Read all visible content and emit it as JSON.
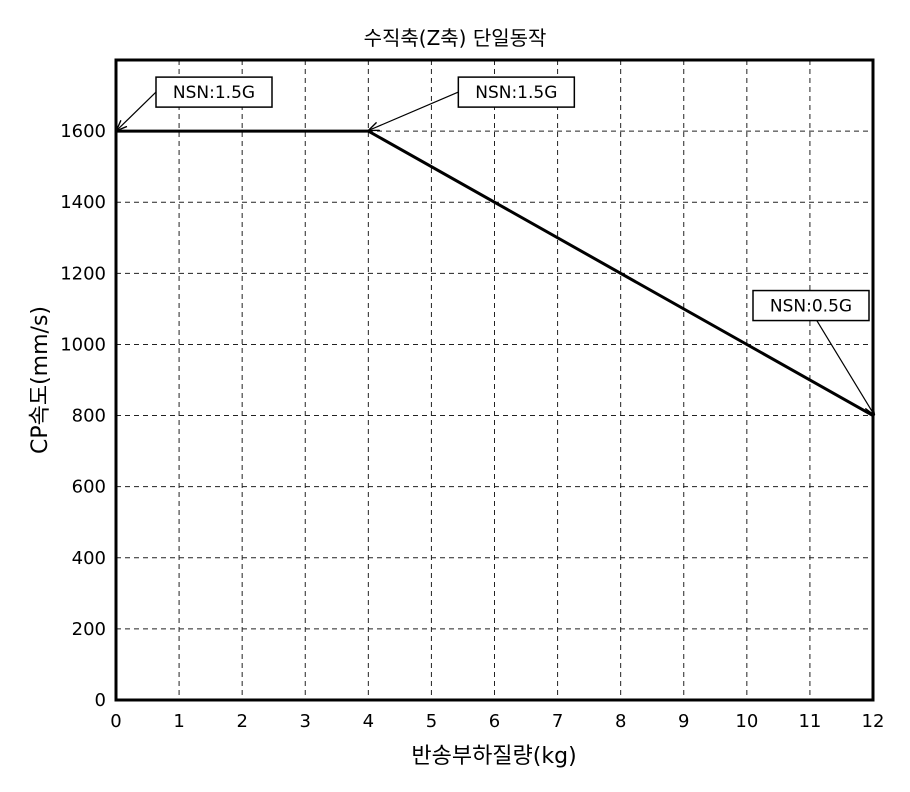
{
  "chart_data": {
    "type": "line",
    "title": "수직축(Z축) 단일동작",
    "xlabel": "반송부하질량(kg)",
    "ylabel": "CP속도(mm/s)",
    "xlim": [
      0,
      12
    ],
    "ylim": [
      0,
      1800
    ],
    "x_ticks": [
      0,
      1,
      2,
      3,
      4,
      5,
      6,
      7,
      8,
      9,
      10,
      11,
      12
    ],
    "y_ticks": [
      0,
      200,
      400,
      600,
      800,
      1000,
      1200,
      1400,
      1600
    ],
    "grid": true,
    "series": [
      {
        "x": [
          0,
          4,
          12
        ],
        "y": [
          1600,
          1600,
          800
        ]
      }
    ],
    "annotations": [
      {
        "text": "NSN:1.5G",
        "x": 0,
        "y": 1600
      },
      {
        "text": "NSN:1.5G",
        "x": 4,
        "y": 1600
      },
      {
        "text": "NSN:0.5G",
        "x": 12,
        "y": 800
      }
    ]
  }
}
